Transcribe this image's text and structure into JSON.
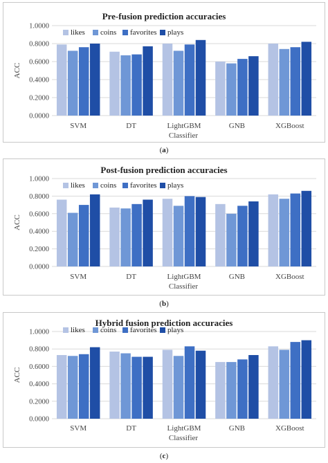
{
  "figure": {
    "captions": [
      "a",
      "b",
      "c"
    ]
  },
  "colors": {
    "likes": "#b4c3e4",
    "coins": "#6f97d6",
    "favorites": "#3e6fc4",
    "plays": "#1f4ea6",
    "grid": "#d9d9d9",
    "axis_text": "#444444"
  },
  "chart_data": [
    {
      "type": "bar",
      "title": "Pre-fusion prediction accuracies",
      "xlabel": "Classifier",
      "ylabel": "ACC",
      "categories": [
        "SVM",
        "DT",
        "LightGBM",
        "GNB",
        "XGBoost"
      ],
      "ylim": [
        0,
        1
      ],
      "yticks": [
        "0.0000",
        "0.2000",
        "0.4000",
        "0.6000",
        "0.8000",
        "1.0000"
      ],
      "grid": true,
      "legend_position": "top",
      "series": [
        {
          "name": "likes",
          "values": [
            0.79,
            0.71,
            0.8,
            0.6,
            0.8
          ]
        },
        {
          "name": "coins",
          "values": [
            0.72,
            0.67,
            0.72,
            0.58,
            0.74
          ]
        },
        {
          "name": "favorites",
          "values": [
            0.76,
            0.68,
            0.79,
            0.63,
            0.76
          ]
        },
        {
          "name": "plays",
          "values": [
            0.8,
            0.77,
            0.84,
            0.66,
            0.82
          ]
        }
      ]
    },
    {
      "type": "bar",
      "title": "Post-fusion prediction accuracies",
      "xlabel": "Classifier",
      "ylabel": "ACC",
      "categories": [
        "SVM",
        "DT",
        "LightGBM",
        "GNB",
        "XGBoost"
      ],
      "ylim": [
        0,
        1
      ],
      "yticks": [
        "0.0000",
        "0.2000",
        "0.4000",
        "0.6000",
        "0.8000",
        "1.0000"
      ],
      "grid": true,
      "legend_position": "top",
      "series": [
        {
          "name": "likes",
          "values": [
            0.76,
            0.67,
            0.77,
            0.71,
            0.82
          ]
        },
        {
          "name": "coins",
          "values": [
            0.61,
            0.66,
            0.69,
            0.6,
            0.77
          ]
        },
        {
          "name": "favorites",
          "values": [
            0.7,
            0.71,
            0.8,
            0.69,
            0.83
          ]
        },
        {
          "name": "plays",
          "values": [
            0.82,
            0.76,
            0.79,
            0.74,
            0.86
          ]
        }
      ]
    },
    {
      "type": "bar",
      "title": "Hybrid fusion prediction accuracies",
      "xlabel": "Classifier",
      "ylabel": "ACC",
      "categories": [
        "SVM",
        "DT",
        "LightGBM",
        "GNB",
        "XGBoost"
      ],
      "ylim": [
        0,
        1
      ],
      "yticks": [
        "0.0000",
        "0.2000",
        "0.4000",
        "0.6000",
        "0.8000",
        "1.0000"
      ],
      "grid": true,
      "legend_position": "top",
      "series": [
        {
          "name": "likes",
          "values": [
            0.73,
            0.77,
            0.79,
            0.65,
            0.83
          ]
        },
        {
          "name": "coins",
          "values": [
            0.72,
            0.75,
            0.72,
            0.65,
            0.79
          ]
        },
        {
          "name": "favorites",
          "values": [
            0.74,
            0.71,
            0.83,
            0.68,
            0.88
          ]
        },
        {
          "name": "plays",
          "values": [
            0.82,
            0.71,
            0.78,
            0.73,
            0.9
          ]
        }
      ]
    }
  ]
}
